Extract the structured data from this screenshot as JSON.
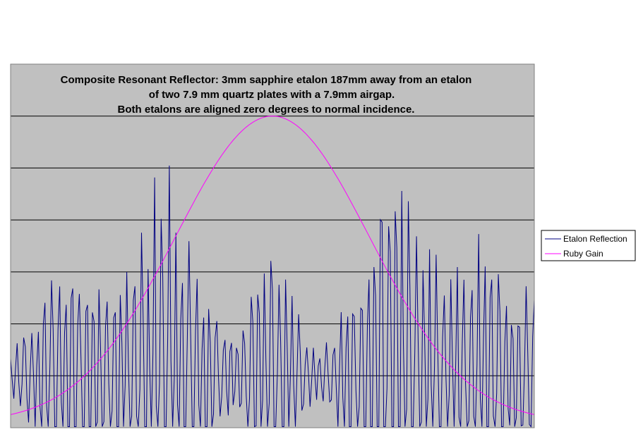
{
  "chart_data": {
    "type": "line",
    "title": [
      "Composite Resonant Reflector:  3mm sapphire etalon 187mm away from an etalon",
      "of two 7.9 mm quartz plates with a  7.9mm airgap.",
      "Both etalons are aligned zero degrees to normal incidence."
    ],
    "xlabel": "",
    "ylabel": "",
    "ylim": [
      0,
      7
    ],
    "grid": true,
    "legend_position": "right",
    "plot_background": "#c0c0c0",
    "series": [
      {
        "name": "Etalon Reflection",
        "color": "#000080",
        "model": {
          "samples": 320,
          "baseline": 1.0,
          "fast_period_samples": 4.2,
          "groups": [
            {
              "center": 0.12,
              "width": 0.08,
              "peak": 2.4
            },
            {
              "center": 0.3,
              "width": 0.08,
              "peak": 3.9
            },
            {
              "center": 0.5,
              "width": 0.05,
              "peak": 2.6
            },
            {
              "center": 0.73,
              "width": 0.08,
              "peak": 4.4
            },
            {
              "center": 0.9,
              "width": 0.07,
              "peak": 2.4
            },
            {
              "center": 1.02,
              "width": 0.04,
              "peak": 2.0
            }
          ]
        }
      },
      {
        "name": "Ruby Gain",
        "color": "#ff00ff",
        "model": {
          "shape": "gaussian",
          "center": 0.5,
          "sigma": 0.185,
          "peak": 6.0,
          "floor": 0.1
        }
      }
    ]
  }
}
